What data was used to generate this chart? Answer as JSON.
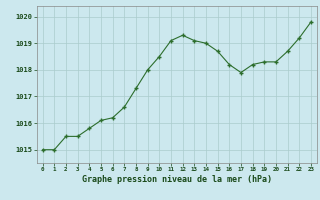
{
  "hours": [
    0,
    1,
    2,
    3,
    4,
    5,
    6,
    7,
    8,
    9,
    10,
    11,
    12,
    13,
    14,
    15,
    16,
    17,
    18,
    19,
    20,
    21,
    22,
    23
  ],
  "pressure": [
    1015.0,
    1015.0,
    1015.5,
    1015.5,
    1015.8,
    1016.1,
    1016.2,
    1016.6,
    1017.3,
    1018.0,
    1018.5,
    1019.1,
    1019.3,
    1019.1,
    1019.0,
    1018.7,
    1018.2,
    1017.9,
    1018.2,
    1018.3,
    1018.3,
    1018.7,
    1019.2,
    1019.8
  ],
  "line_color": "#2d6e2d",
  "marker_color": "#2d6e2d",
  "bg_color": "#cce8ee",
  "grid_color": "#aacccc",
  "axis_label_color": "#1a4a1a",
  "tick_label_color": "#1a4a1a",
  "xlabel": "Graphe pression niveau de la mer (hPa)",
  "ylim": [
    1014.5,
    1020.4
  ],
  "yticks": [
    1015,
    1016,
    1017,
    1018,
    1019,
    1020
  ]
}
